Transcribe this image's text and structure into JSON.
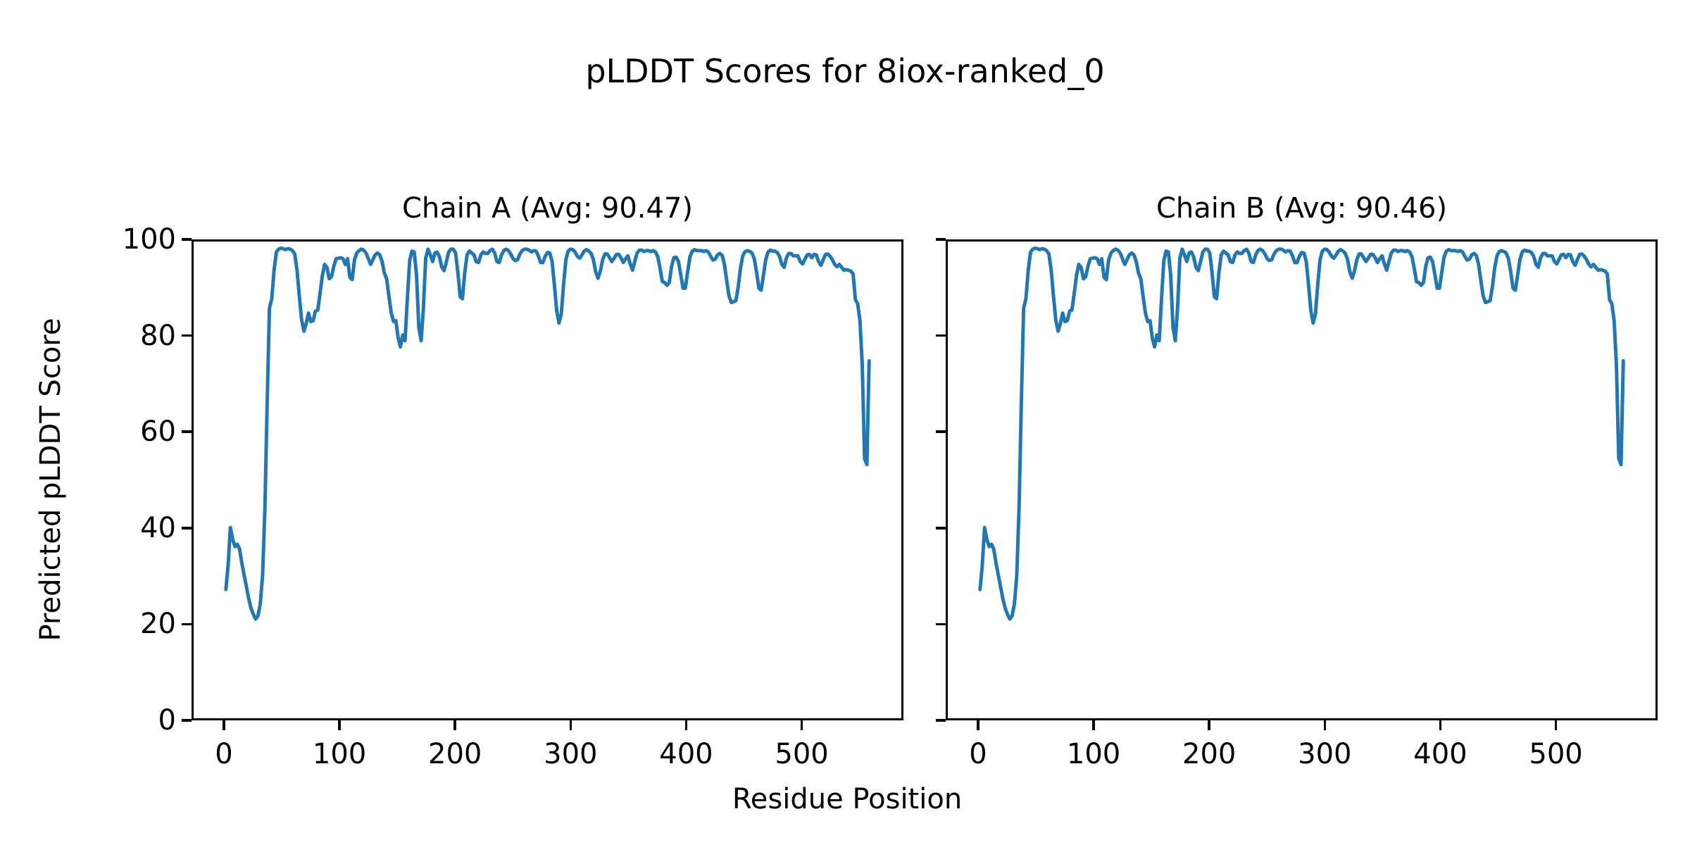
{
  "figure": {
    "suptitle": "pLDDT Scores for 8iox-ranked_0",
    "xlabel": "Residue Position",
    "ylabel": "Predicted pLDDT Score",
    "background_color": "#ffffff",
    "text_color": "#000000"
  },
  "chart_data": {
    "type": "line",
    "title": "pLDDT Scores for 8iox-ranked_0",
    "xlabel": "Residue Position",
    "ylabel": "Predicted pLDDT Score",
    "line_color": "#1f77b4",
    "grid": false,
    "legend": false,
    "x_start": 0,
    "x_step": 2,
    "xlim": [
      -28,
      588
    ],
    "ylim": [
      0,
      100
    ],
    "x_ticks": [
      0,
      100,
      200,
      300,
      400,
      500
    ],
    "y_ticks": [
      0,
      20,
      40,
      60,
      80,
      100
    ],
    "subplots": [
      {
        "title": "Chain A (Avg: 90.47)",
        "chain": "A",
        "avg": 90.47,
        "y_tick_labels_visible": true,
        "values": [
          27,
          32,
          40,
          37.5,
          36,
          36.5,
          35.5,
          32.5,
          30,
          27.5,
          25,
          23,
          21.8,
          20.8,
          21.5,
          24,
          30,
          44,
          66,
          86,
          88,
          94,
          97.8,
          98.4,
          98.6,
          98.5,
          98.3,
          98.5,
          98.4,
          98.1,
          97.4,
          94,
          88.5,
          83.5,
          81.2,
          82.8,
          85,
          83.2,
          83.4,
          85.4,
          85.6,
          89,
          92.8,
          95.2,
          94.6,
          92.2,
          92.6,
          94.8,
          96.4,
          96.5,
          96.6,
          96.4,
          95.2,
          96.4,
          92.5,
          92,
          96.2,
          97.6,
          98.1,
          98.4,
          98.2,
          97.6,
          96.4,
          95.2,
          96.2,
          97.2,
          97.6,
          97.2,
          95.8,
          93.4,
          92.2,
          88.5,
          85,
          83.2,
          83.4,
          79.8,
          77.9,
          80.4,
          79.2,
          88,
          96,
          98,
          97.8,
          93,
          82,
          79.2,
          86,
          96.5,
          98.4,
          97.2,
          95.8,
          97.6,
          97.8,
          96.8,
          94.6,
          93.9,
          95.8,
          97.8,
          98.4,
          98.4,
          97.6,
          93.5,
          88.4,
          88,
          93.5,
          97.2,
          98,
          97.6,
          97.2,
          95.8,
          95.6,
          97.2,
          97.8,
          97.5,
          97.5,
          98.1,
          98.4,
          97.6,
          95.8,
          95.6,
          97.2,
          98.1,
          98.4,
          98.1,
          97.4,
          96.4,
          96,
          96.2,
          97.4,
          98.1,
          98.4,
          98.4,
          98.2,
          97.8,
          98.1,
          98,
          97,
          95.6,
          95.6,
          96.9,
          97.7,
          97.6,
          95.8,
          91,
          85.6,
          82.9,
          84.8,
          91,
          96.2,
          98,
          98.4,
          98.3,
          97.8,
          96.9,
          96.5,
          97.2,
          98,
          98.3,
          98,
          97.5,
          96.2,
          93.6,
          92.3,
          93.8,
          96.2,
          97.4,
          97.4,
          96.6,
          95.8,
          96.5,
          97.3,
          97.3,
          96.6,
          95.6,
          96.4,
          97,
          95.3,
          94,
          95.8,
          97.6,
          98.2,
          98.2,
          97.9,
          98.1,
          98.1,
          97.9,
          98.1,
          97.8,
          96.8,
          94.4,
          91.6,
          91.4,
          90.8,
          91.4,
          94.8,
          96.6,
          96.7,
          95.8,
          93,
          90.2,
          90.2,
          93.6,
          96.8,
          98,
          98.3,
          98.1,
          98.1,
          98.1,
          97.9,
          98.1,
          97.8,
          96.9,
          96.1,
          96.3,
          97.2,
          97.5,
          97.1,
          95.2,
          91.8,
          88.6,
          87.2,
          87.4,
          87.6,
          90.4,
          94.4,
          97,
          97.9,
          98.1,
          97.9,
          97.6,
          96.4,
          93.6,
          90.2,
          89.8,
          93,
          96.2,
          97.8,
          98.2,
          98,
          98,
          97.7,
          96.9,
          95.2,
          94.6,
          96.6,
          97.5,
          97.5,
          97,
          97,
          97,
          95.8,
          95.3,
          96.2,
          97.2,
          97.3,
          96.6,
          97.3,
          97.2,
          95.8,
          95,
          96.2,
          97.3,
          97.4,
          96.9,
          96.2,
          95.2,
          94.7,
          95.2,
          94.6,
          94,
          94.1,
          94,
          93.8,
          93.2,
          87.8,
          87,
          83.4,
          74,
          54.5,
          53.2,
          75
        ]
      },
      {
        "title": "Chain B (Avg: 90.46)",
        "chain": "B",
        "avg": 90.46,
        "y_tick_labels_visible": false,
        "values_same_as_subplot": 0
      }
    ]
  }
}
